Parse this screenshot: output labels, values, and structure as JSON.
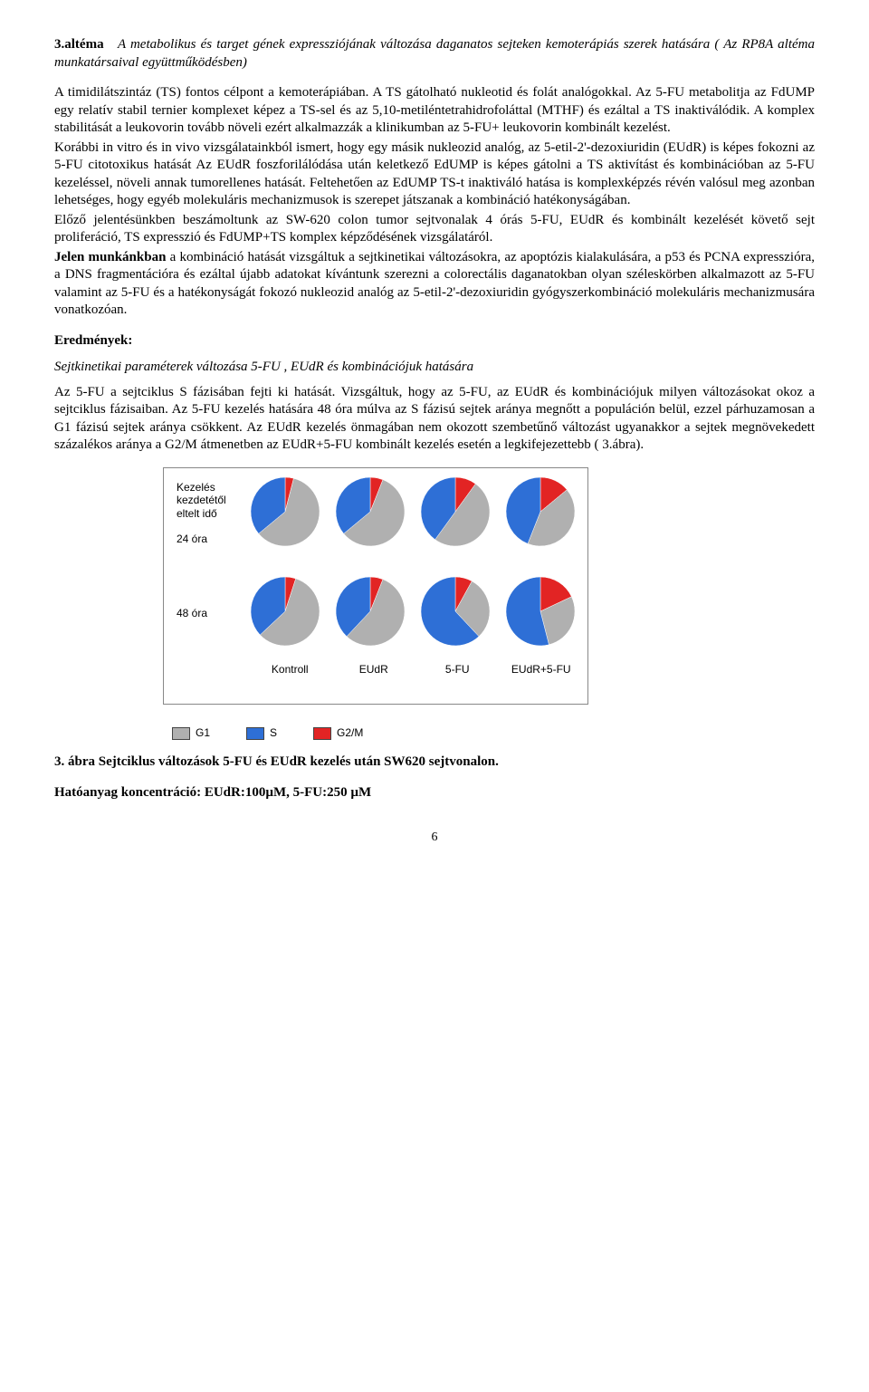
{
  "title_line": {
    "prefix_bold": "3.altéma",
    "rest_italic": "A metabolikus és target gének expressziójának változása daganatos sejteken kemoterápiás szerek hatására ( Az RP8A altéma munkatársaival együttműködésben)"
  },
  "body_paragraph_1": "A timidilátszintáz (TS) fontos célpont a kemoterápiában. A TS gátolható nukleotid és folát analógokkal. Az 5-FU metabolitja az FdUMP egy relatív stabil ternier komplexet képez a TS-sel és az 5,10-metiléntetrahidrofoláttal (MTHF) és ezáltal a TS inaktiválódik. A komplex stabilitását a leukovorin tovább növeli ezért alkalmazzák a klinikumban az 5-FU+ leukovorin kombinált kezelést.",
  "body_paragraph_2": "Korábbi in vitro és in vivo vizsgálatainkból ismert, hogy egy másik nukleozid analóg, az 5-etil-2'-dezoxiuridin (EUdR) is képes fokozni az 5-FU citotoxikus hatását Az EUdR foszforilálódása után keletkező EdUMP is képes gátolni a TS aktivítást és kombinációban az 5-FU kezeléssel, növeli annak tumorellenes hatását. Feltehetően az EdUMP TS-t inaktiváló hatása is komplexképzés révén valósul meg azonban lehetséges, hogy egyéb molekuláris mechanizmusok is szerepet játszanak a kombináció hatékonyságában.",
  "body_paragraph_3": "Előző jelentésünkben beszámoltunk az SW-620 colon tumor sejtvonalak 4 órás 5-FU, EUdR és kombinált kezelését követő sejt proliferáció, TS expresszió és FdUMP+TS komplex képződésének vizsgálatáról.",
  "body_paragraph_4a_bold": "Jelen munkánkban",
  "body_paragraph_4b": " a kombináció hatását vizsgáltuk a sejtkinetikai változásokra, az apoptózis kialakulására, a p53 és PCNA expresszióra, a DNS fragmentációra és ezáltal újabb adatokat kívántunk szerezni a colorectális daganatokban olyan széleskörben alkalmazott az 5-FU valamint az 5-FU és a hatékonyságát fokozó nukleozid analóg az 5-etil-2'-dezoxiuridin gyógyszerkombináció molekuláris mechanizmusára vonatkozóan.",
  "results_heading": "Eredmények:",
  "subheading": "Sejtkinetikai paraméterek változása 5-FU , EUdR és kombinációjuk hatására",
  "body_paragraph_5": "Az 5-FU a sejtciklus S fázisában fejti ki hatását. Vizsgáltuk, hogy az 5-FU, az EUdR és kombinációjuk milyen változásokat okoz a sejtciklus fázisaiban. Az 5-FU kezelés hatására 48 óra múlva az S fázisú sejtek aránya megnőtt a populáción belül, ezzel párhuzamosan a G1 fázisú sejtek aránya csökkent. Az EUdR kezelés önmagában nem okozott szembetűnő változást ugyanakkor a sejtek megnövekedett százalékos aránya a G2/M átmenetben az EUdR+5-FU kombinált kezelés esetén a legkifejezettebb ( 3.ábra).",
  "chart": {
    "type": "pie-grid",
    "colors": {
      "G1": "#b0b0b0",
      "S": "#2e6fd6",
      "G2M": "#e22424"
    },
    "row_label_header": "Kezelés kezdetétől eltelt idő",
    "rows": [
      {
        "label": "24 óra",
        "pies": [
          {
            "G1": 60,
            "S": 36,
            "G2M": 4
          },
          {
            "G1": 58,
            "S": 36,
            "G2M": 6
          },
          {
            "G1": 50,
            "S": 40,
            "G2M": 10
          },
          {
            "G1": 42,
            "S": 44,
            "G2M": 14
          }
        ]
      },
      {
        "label": "48 óra",
        "pies": [
          {
            "G1": 58,
            "S": 37,
            "G2M": 5
          },
          {
            "G1": 56,
            "S": 38,
            "G2M": 6
          },
          {
            "G1": 30,
            "S": 62,
            "G2M": 8
          },
          {
            "G1": 28,
            "S": 54,
            "G2M": 18
          }
        ]
      }
    ],
    "columns": [
      "Kontroll",
      "EUdR",
      "5-FU",
      "EUdR+5-FU"
    ]
  },
  "legend": {
    "G1": "G1",
    "S": "S",
    "G2M": "G2/M"
  },
  "figure_caption_1": "3. ábra Sejtciklus változások 5-FU és EUdR kezelés után SW620 sejtvonalon.",
  "figure_caption_2": "Hatóanyag koncentráció: EUdR:100µM, 5-FU:250 µM",
  "page_number": "6"
}
